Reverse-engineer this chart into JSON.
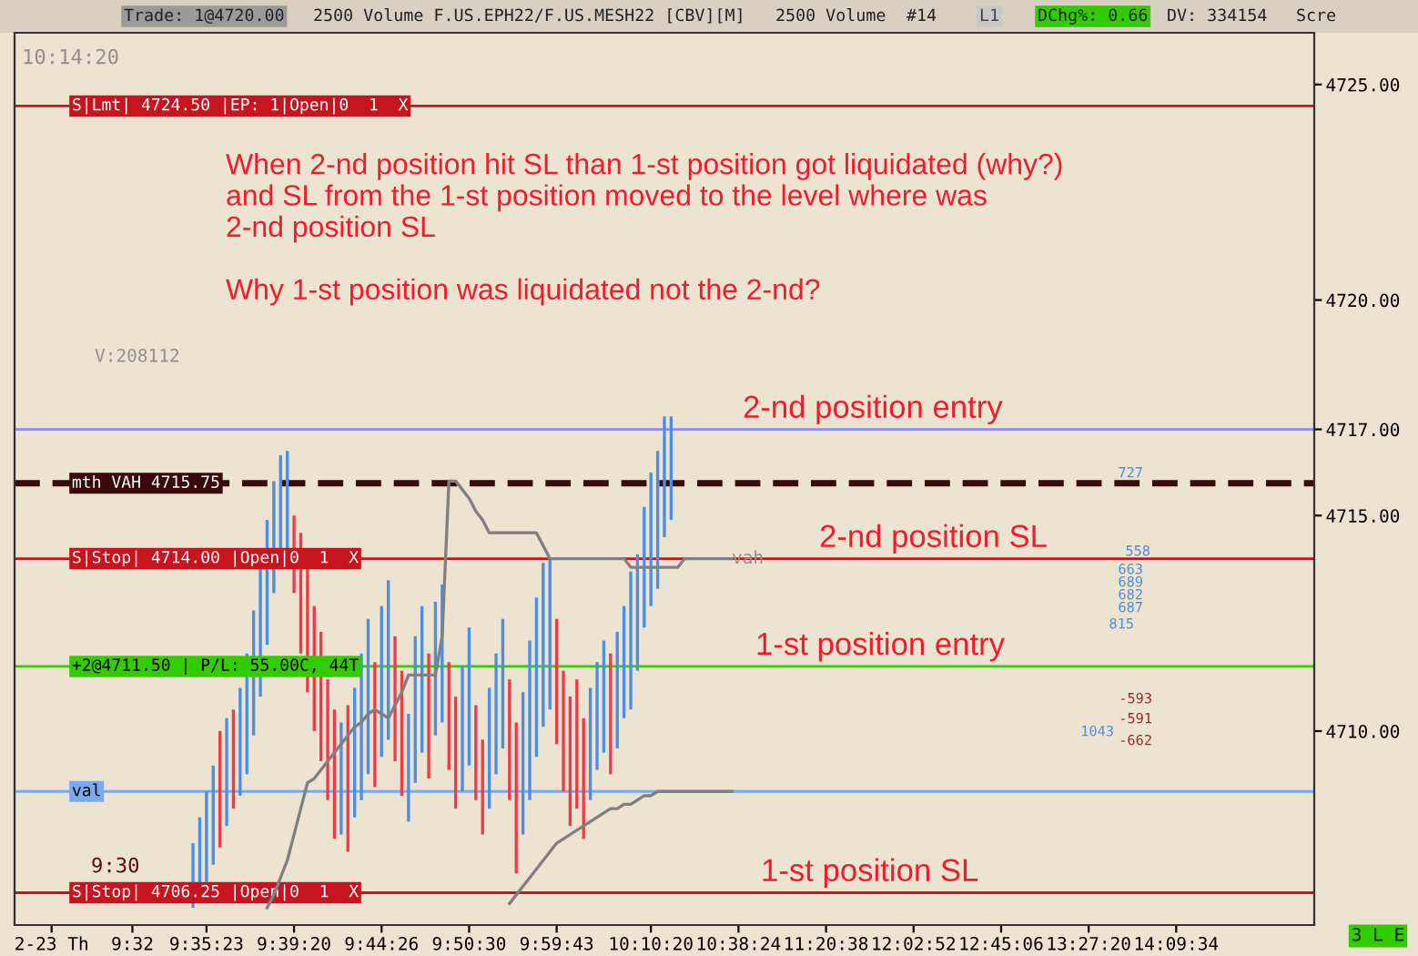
{
  "chart_data": {
    "type": "bar",
    "ylim": [
      4705.5,
      4726.2
    ],
    "yticks": [
      {
        "value": 4710,
        "label": "4710.00"
      },
      {
        "value": 4715,
        "label": "4715.00"
      },
      {
        "value": 4717,
        "label": "4717.00"
      },
      {
        "value": 4720,
        "label": "4720.00"
      },
      {
        "value": 4725,
        "label": "4725.00"
      }
    ],
    "categories": [
      null,
      null,
      null,
      null,
      null,
      "2-23 Th",
      null,
      null,
      null,
      null,
      null,
      null,
      null,
      null,
      null,
      null,
      null,
      "9:32",
      null,
      null,
      null,
      null,
      null,
      null,
      null,
      null,
      null,
      null,
      "9:35:23",
      null,
      null,
      null,
      null,
      null,
      null,
      null,
      null,
      null,
      null,
      null,
      null,
      "9:39:20",
      null,
      null,
      null,
      null,
      null,
      null,
      null,
      null,
      null,
      null,
      null,
      null,
      "9:44:26",
      null,
      null,
      null,
      null,
      null,
      null,
      null,
      null,
      null,
      null,
      null,
      null,
      "9:50:30",
      null,
      null,
      null,
      null,
      null,
      null,
      null,
      null,
      null,
      null,
      null,
      null,
      "9:59:43",
      null,
      null,
      null,
      null,
      null,
      null,
      null,
      null,
      null,
      null,
      null,
      null,
      null,
      "10:10:20",
      null,
      null,
      null,
      null,
      null,
      null,
      null,
      null,
      null,
      null,
      null,
      null,
      "10:38:24",
      null,
      null,
      null,
      null,
      null,
      null,
      null,
      null,
      null,
      null,
      null,
      null,
      "11:20:38",
      null,
      null,
      null,
      null,
      null,
      null,
      null,
      null,
      null,
      null,
      null,
      null,
      "12:02:52",
      null,
      null,
      null,
      null,
      null,
      null,
      null,
      null,
      null,
      null,
      null,
      null,
      "12:45:06",
      null,
      null,
      null,
      null,
      null,
      null,
      null,
      null,
      null,
      null,
      null,
      null,
      "13:27:20",
      null,
      null,
      null,
      null,
      null,
      null,
      null,
      null,
      null,
      null,
      null,
      null,
      "14:09:34",
      null,
      null,
      null,
      null,
      null,
      null,
      null,
      null,
      null,
      null,
      null,
      null,
      null,
      null,
      null,
      null,
      null,
      null,
      null,
      null
    ],
    "series": [
      {
        "base": [
          null,
          null,
          null,
          null,
          null,
          null,
          null,
          null,
          null,
          null,
          null,
          null,
          null,
          null,
          null,
          null,
          null,
          null,
          null,
          null,
          null,
          null,
          null,
          null,
          null,
          null,
          4705.9,
          4706.1,
          4706.5,
          4706.9,
          4707.3,
          4707.8,
          4708.2,
          4708.5,
          4709.0,
          4709.9,
          4710.8,
          4712.0,
          4713.2,
          4713.8,
          4714.2,
          4713.2,
          4711.8,
          4710.9,
          4710.0,
          4709.3,
          4708.4,
          4707.5,
          4707.6,
          4707.2,
          4708.0,
          4708.4,
          4709.0,
          4708.7,
          4709.4,
          4709.8,
          4709.3,
          4708.5,
          4707.9,
          4708.8,
          4709.5,
          4708.9,
          4709.9,
          4710.2,
          4709.1,
          4708.2,
          4708.6,
          4709.2,
          4708.4,
          4707.6,
          4708.2,
          4709.0,
          4709.6,
          4708.4,
          4706.7,
          4707.6,
          4708.4,
          4709.4,
          4710.1,
          4710.5,
          4709.7,
          4708.6,
          4707.8,
          4708.2,
          4707.5,
          4708.4,
          4709.1,
          4709.5,
          4709.0,
          4709.6,
          4710.3,
          4710.5,
          4711.4,
          4712.4,
          4712.9,
          4713.3,
          4714.5,
          4714.9,
          null,
          null,
          null,
          null,
          null,
          null,
          null,
          null,
          null,
          null,
          null,
          null,
          null,
          null,
          null,
          null,
          null,
          null,
          null,
          null,
          null,
          null,
          null,
          null,
          null,
          null,
          null,
          null,
          null,
          null,
          null,
          null,
          null,
          null,
          null,
          null,
          null,
          null,
          null,
          null,
          null,
          null,
          null,
          null,
          null,
          null,
          null,
          null,
          null,
          null,
          null,
          null,
          null,
          null,
          null,
          null,
          null,
          null,
          null,
          null,
          null,
          null,
          null,
          null,
          null,
          null,
          null,
          null,
          null,
          null,
          null,
          null,
          null,
          null,
          null,
          null,
          null,
          null,
          null,
          null,
          null,
          null,
          null,
          null,
          null,
          null,
          null,
          null,
          null,
          null,
          null,
          null,
          null,
          null,
          null
        ],
        "values": [
          null,
          null,
          null,
          null,
          null,
          null,
          null,
          null,
          null,
          null,
          null,
          null,
          null,
          null,
          null,
          null,
          null,
          null,
          null,
          null,
          null,
          null,
          null,
          null,
          null,
          null,
          1.5,
          1.9,
          2.1,
          2.3,
          2.7,
          2.5,
          2.3,
          2.5,
          2.8,
          2.9,
          3.0,
          2.9,
          2.6,
          2.6,
          2.3,
          1.8,
          2.8,
          2.9,
          2.9,
          3.0,
          2.8,
          3.0,
          2.6,
          3.4,
          3.0,
          3.4,
          3.6,
          2.9,
          3.5,
          3.7,
          2.9,
          2.9,
          2.5,
          3.4,
          3.4,
          2.9,
          3.1,
          3.2,
          2.5,
          2.6,
          2.9,
          3.2,
          2.2,
          2.2,
          2.8,
          2.8,
          3.0,
          2.8,
          3.5,
          3.3,
          3.7,
          3.7,
          3.8,
          3.5,
          2.9,
          2.8,
          3.0,
          3.0,
          2.8,
          2.6,
          2.5,
          2.6,
          2.8,
          2.7,
          2.6,
          3.2,
          2.7,
          2.8,
          3.1,
          3.2,
          2.8,
          2.4,
          null,
          null,
          null,
          null,
          null,
          null,
          null,
          null,
          null,
          null,
          null,
          null,
          null,
          null,
          null,
          null,
          null,
          null,
          null,
          null,
          null,
          null,
          null,
          null,
          null,
          null,
          null,
          null,
          null,
          null,
          null,
          null,
          null,
          null,
          null,
          null,
          null,
          null,
          null,
          null,
          null,
          null,
          null,
          null,
          null,
          null,
          null,
          null,
          null,
          null,
          null,
          null,
          null,
          null,
          null,
          null,
          null,
          null,
          null,
          null,
          null,
          null,
          null,
          null,
          null,
          null,
          null,
          null,
          null,
          null,
          null,
          null,
          null,
          null,
          null,
          null,
          null,
          null,
          null,
          null,
          null,
          null,
          null,
          null,
          null,
          null,
          null,
          null,
          null,
          null,
          null,
          null,
          null,
          null,
          null
        ],
        "colors": [
          null,
          null,
          null,
          null,
          null,
          null,
          null,
          null,
          null,
          null,
          null,
          null,
          null,
          null,
          null,
          null,
          null,
          null,
          null,
          null,
          null,
          null,
          null,
          null,
          null,
          null,
          "#4a8ee6",
          "#4a8ee6",
          "#4a8ee6",
          "#4a8ee6",
          "#f03a4a",
          "#4a8ee6",
          "#f03a4a",
          "#4a8ee6",
          "#4a8ee6",
          "#4a8ee6",
          "#4a8ee6",
          "#4a8ee6",
          "#4a8ee6",
          "#4a8ee6",
          "#4a8ee6",
          "#f03a4a",
          "#f03a4a",
          "#f03a4a",
          "#f03a4a",
          "#f03a4a",
          "#f03a4a",
          "#f03a4a",
          "#4a8ee6",
          "#f03a4a",
          "#4a8ee6",
          "#4a8ee6",
          "#4a8ee6",
          "#f03a4a",
          "#4a8ee6",
          "#4a8ee6",
          "#f03a4a",
          "#f03a4a",
          "#4a8ee6",
          "#4a8ee6",
          "#4a8ee6",
          "#f03a4a",
          "#4a8ee6",
          "#4a8ee6",
          "#f03a4a",
          "#f03a4a",
          "#4a8ee6",
          "#4a8ee6",
          "#f03a4a",
          "#f03a4a",
          "#4a8ee6",
          "#4a8ee6",
          "#4a8ee6",
          "#f03a4a",
          "#f03a4a",
          "#4a8ee6",
          "#4a8ee6",
          "#4a8ee6",
          "#4a8ee6",
          "#4a8ee6",
          "#f03a4a",
          "#f03a4a",
          "#f03a4a",
          "#f03a4a",
          "#f03a4a",
          "#4a8ee6",
          "#4a8ee6",
          "#4a8ee6",
          "#f03a4a",
          "#4a8ee6",
          "#4a8ee6",
          "#4a8ee6",
          "#4a8ee6",
          "#4a8ee6",
          "#4a8ee6",
          "#4a8ee6",
          "#4a8ee6",
          "#4a8ee6",
          null,
          null,
          null,
          null,
          null,
          null,
          null,
          null,
          null,
          null,
          null,
          null,
          null,
          null,
          null,
          null,
          null,
          null,
          null,
          null,
          null,
          null,
          null,
          null,
          null,
          null,
          null,
          null,
          null,
          null,
          null,
          null,
          null,
          null,
          null,
          null,
          null,
          null,
          null,
          null,
          null,
          null,
          null,
          null,
          null,
          null,
          null,
          null,
          null,
          null,
          null,
          null,
          null,
          null,
          null,
          null,
          null,
          null,
          null,
          null,
          null,
          null,
          null,
          null,
          null,
          null,
          null,
          null,
          null,
          null,
          null,
          null,
          null,
          null,
          null,
          null,
          null,
          null,
          null,
          null,
          null,
          null,
          null,
          null,
          null,
          null,
          null,
          null,
          null,
          null,
          null,
          null,
          null,
          null,
          null
        ]
      },
      {
        "type": "line",
        "color": "#808080",
        "values": [
          null,
          null,
          null,
          null,
          null,
          null,
          null,
          null,
          null,
          null,
          null,
          null,
          null,
          null,
          null,
          null,
          null,
          null,
          null,
          null,
          null,
          null,
          null,
          null,
          null,
          null,
          null,
          null,
          null,
          null,
          null,
          null,
          null,
          null,
          null,
          null,
          null,
          4705.9,
          4706.2,
          4706.6,
          4707.0,
          4707.6,
          4708.2,
          4708.8,
          4708.9,
          4709.1,
          4709.3,
          4709.5,
          4709.7,
          4709.9,
          4710.1,
          4710.2,
          4710.4,
          4710.5,
          4710.4,
          4710.3,
          4710.6,
          4710.9,
          4711.3,
          4711.3,
          4711.3,
          4711.3,
          4711.3,
          4712.2,
          4715.8,
          4715.8,
          4715.6,
          4715.4,
          4715.1,
          4714.9,
          4714.6,
          4714.6,
          4714.6,
          4714.6,
          4714.6,
          4714.6,
          4714.6,
          4714.6,
          4714.3,
          4714.0,
          4714.0,
          4714.0,
          4714.0,
          4714.0,
          4714.0,
          4714.0,
          4714.0,
          4714.0,
          4714.0,
          4714.0,
          4714.0,
          4713.8,
          4713.8,
          4713.8,
          4713.8,
          4713.8,
          4713.8,
          4713.8,
          4713.8,
          4714.0,
          4714.0,
          4714.0,
          4714.0,
          4714.0,
          4714.0,
          4714.0,
          4714.0,
          null,
          null,
          null,
          null,
          null,
          null,
          null,
          null,
          null,
          null,
          null,
          null,
          null,
          null,
          null,
          null,
          null,
          null,
          null,
          null,
          null,
          null,
          null,
          null,
          null,
          null,
          null,
          null,
          null,
          null,
          null,
          null,
          null,
          null,
          null,
          null,
          null,
          null,
          null,
          null,
          null,
          null,
          null,
          null,
          null,
          null,
          null,
          null,
          null,
          null,
          null,
          null,
          null,
          null,
          null,
          null,
          null,
          null,
          null,
          null,
          null,
          null,
          null,
          null,
          null,
          null,
          null,
          null,
          null,
          null,
          null,
          null,
          null,
          null,
          null,
          null,
          null,
          null,
          null,
          null,
          null,
          null,
          null,
          null,
          null,
          null
        ]
      },
      {
        "type": "line",
        "color": "#808080",
        "values": [
          null,
          null,
          null,
          null,
          null,
          null,
          null,
          null,
          null,
          null,
          null,
          null,
          null,
          null,
          null,
          null,
          null,
          null,
          null,
          null,
          null,
          null,
          null,
          null,
          null,
          null,
          null,
          null,
          null,
          null,
          null,
          null,
          null,
          null,
          null,
          null,
          null,
          null,
          null,
          null,
          null,
          null,
          null,
          null,
          null,
          null,
          null,
          null,
          null,
          null,
          null,
          null,
          null,
          null,
          null,
          null,
          null,
          null,
          null,
          null,
          null,
          null,
          null,
          null,
          null,
          null,
          null,
          null,
          null,
          null,
          null,
          null,
          null,
          4706.0,
          4706.2,
          4706.4,
          4706.6,
          4706.8,
          4707.0,
          4707.2,
          4707.4,
          4707.5,
          4707.6,
          4707.7,
          4707.8,
          4707.9,
          4708.0,
          4708.1,
          4708.2,
          4708.2,
          4708.3,
          4708.3,
          4708.4,
          4708.5,
          4708.5,
          4708.6,
          4708.6,
          4708.6,
          4708.6,
          4708.6,
          4708.6,
          4708.6,
          4708.6,
          4708.6,
          4708.6,
          4708.6,
          4708.6,
          null,
          null,
          null,
          null,
          null,
          null,
          null,
          null,
          null,
          null,
          null,
          null,
          null,
          null,
          null,
          null,
          null,
          null,
          null,
          null,
          null,
          null,
          null,
          null,
          null,
          null,
          null,
          null,
          null,
          null,
          null,
          null,
          null,
          null,
          null,
          null,
          null,
          null,
          null,
          null,
          null,
          null,
          null,
          null,
          null,
          null,
          null,
          null,
          null,
          null,
          null,
          null,
          null,
          null,
          null,
          null,
          null,
          null,
          null,
          null,
          null,
          null,
          null,
          null,
          null,
          null,
          null,
          null,
          null,
          null,
          null,
          null,
          null,
          null,
          null,
          null,
          null,
          null,
          null,
          null,
          null,
          null,
          null,
          null,
          null,
          null
        ]
      }
    ],
    "ref_lines": [
      {
        "axis": "y",
        "value": 4724.5,
        "label": "S|Lmt| 4724.50 |EP: 1|Open|0  1  X",
        "color": "#c8141e",
        "line_style": "solid"
      },
      {
        "axis": "y",
        "value": 4717,
        "color": "#8c8cff",
        "line_style": "solid"
      },
      {
        "axis": "y",
        "value": 4715.75,
        "label": "mth VAH 4715.75",
        "color": "#3a0a0a",
        "line_style": "dashed"
      },
      {
        "axis": "y",
        "value": 4714,
        "label": "S|Stop| 4714.00 |Open|0  1  X",
        "color": "#c8141e",
        "line_style": "solid"
      },
      {
        "axis": "y",
        "value": 4711.5,
        "label": "+2@4711.50 | P/L: 55.00C, 44T",
        "color": "#33cc00",
        "line_style": "solid"
      },
      {
        "axis": "y",
        "value": 4708.6,
        "label": "val",
        "color": "#7aaaee",
        "line_style": "solid"
      },
      {
        "axis": "y",
        "value": 4706.25,
        "label": "S|Stop| 4706.25 |Open|0  1  X",
        "color": "#c8141e",
        "line_style": "solid"
      }
    ],
    "annotations": [
      "Trade: 1@4720.00",
      "2500 Volume F.US.EPH22/F.US.MESH22 [CBV][M]",
      "2500 Volume",
      "#14",
      "L1",
      "DChg%: 0.66",
      "DV: 334154",
      "Scre",
      "10:14:20",
      "V:208112",
      "When 2-nd position hit SL than 1-st position got liquidated (why?)\nand SL from the 1-st position moved to the level where was\n2-nd position SL\n\nWhy 1-st position was liquidated not the 2-nd?",
      "9:30",
      "3 L E",
      "727",
      "558",
      "663",
      "689",
      "682",
      "687",
      "815",
      "-593",
      "-591",
      "1043",
      "-662",
      {
        "text": "2-nd position entry",
        "y": 4717
      },
      {
        "text": "2-nd position SL",
        "y": 4714
      },
      {
        "text": "1-st position entry",
        "y": 4711.5
      },
      {
        "text": "1-st position SL",
        "y": 4706.25
      },
      {
        "text": "vah",
        "y": 4714
      }
    ]
  }
}
